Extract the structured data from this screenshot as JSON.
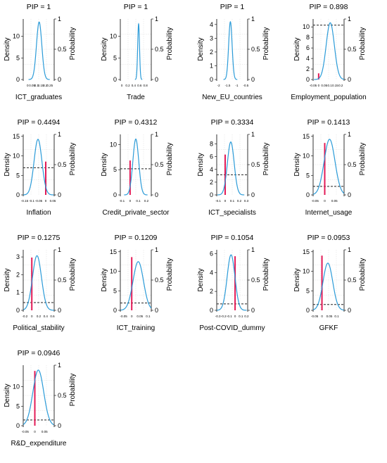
{
  "chart_data": [
    {
      "type": "line",
      "title": "PIP = 1",
      "xlabel": "ICT_graduates",
      "ylabel": "Density",
      "y2label": "Probability",
      "pip": 1,
      "mean": 0.13,
      "sd": 0.03,
      "xlim": [
        -0.05,
        0.3
      ],
      "ylim": [
        0,
        14
      ],
      "xticks": [
        "0",
        "0.05",
        "0.1",
        "0.15",
        "0.2",
        "0.25"
      ],
      "yticks": [
        "0",
        "5",
        "10"
      ],
      "y2ticks": [
        "0",
        "0.5",
        "1"
      ]
    },
    {
      "type": "line",
      "title": "PIP = 1",
      "xlabel": "Trade",
      "ylabel": "Density",
      "y2label": "Probability",
      "pip": 1,
      "mean": 0.57,
      "sd": 0.031,
      "xlim": [
        -0.05,
        1.0
      ],
      "ylim": [
        0,
        14
      ],
      "xticks": [
        "0",
        "0.2",
        "0.4",
        "0.6",
        "0.8"
      ],
      "yticks": [
        "0",
        "5",
        "10"
      ],
      "y2ticks": [
        "0",
        "0.5",
        "1"
      ]
    },
    {
      "type": "line",
      "title": "PIP = 1",
      "xlabel": "New_EU_countries",
      "ylabel": "Density",
      "y2label": "Probability",
      "pip": 1,
      "mean": -1.35,
      "sd": 0.095,
      "xlim": [
        -2.1,
        -0.4
      ],
      "ylim": [
        0,
        4.4
      ],
      "xticks": [
        "-2",
        "-1.5",
        "-1",
        "-0.5"
      ],
      "yticks": [
        "0",
        "1",
        "2",
        "3",
        "4"
      ],
      "y2ticks": [
        "0",
        "0.5",
        "1"
      ]
    },
    {
      "type": "line",
      "title": "PIP = 0.898",
      "xlabel": "Employment_population",
      "ylabel": "Density",
      "y2label": "Probability",
      "pip": 0.898,
      "mean": 0.105,
      "sd": 0.037,
      "xlim": [
        -0.05,
        0.23
      ],
      "ylim": [
        0,
        11.5
      ],
      "xticks": [
        "-0.05",
        "0",
        "0.05",
        "0.1",
        "0.15",
        "0.2"
      ],
      "yticks": [
        "0",
        "2",
        "4",
        "6",
        "8",
        "10"
      ],
      "y2ticks": [
        "0",
        "0.5",
        "1"
      ]
    },
    {
      "type": "line",
      "title": "PIP = 0.4494",
      "xlabel": "Inflation",
      "ylabel": "Density",
      "y2label": "Probability",
      "pip": 0.4494,
      "mean": -0.055,
      "sd": 0.028,
      "xlim": [
        -0.16,
        0.06
      ],
      "ylim": [
        0,
        15.5
      ],
      "xticks": [
        "-0.15",
        "-0.1",
        "-0.05",
        "0",
        "0.05"
      ],
      "yticks": [
        "0",
        "5",
        "10",
        "15"
      ],
      "y2ticks": [
        "0",
        "0.5",
        "1"
      ]
    },
    {
      "type": "line",
      "title": "PIP = 0.4312",
      "xlabel": "Credit_private_sector",
      "ylabel": "Density",
      "y2label": "Probability",
      "pip": 0.4312,
      "mean": 0.07,
      "sd": 0.036,
      "xlim": [
        -0.12,
        0.26
      ],
      "ylim": [
        0,
        12
      ],
      "xticks": [
        "-0.1",
        "0",
        "0.1",
        "0.2"
      ],
      "yticks": [
        "0",
        "5",
        "10"
      ],
      "y2ticks": [
        "0",
        "0.5",
        "1"
      ]
    },
    {
      "type": "line",
      "title": "PIP = 0.3334",
      "xlabel": "ICT_specialists",
      "ylabel": "Density",
      "y2label": "Probability",
      "pip": 0.3334,
      "mean": 0.08,
      "sd": 0.048,
      "xlim": [
        -0.12,
        0.32
      ],
      "ylim": [
        0,
        9.5
      ],
      "xticks": [
        "-0.1",
        "0",
        "0.1",
        "0.2",
        "0.3"
      ],
      "yticks": [
        "0",
        "2",
        "4",
        "6",
        "8"
      ],
      "y2ticks": [
        "0",
        "0.5",
        "1"
      ]
    },
    {
      "type": "line",
      "title": "PIP = 0.1413",
      "xlabel": "Internet_usage",
      "ylabel": "Density",
      "y2label": "Probability",
      "pip": 0.1413,
      "mean": 0.025,
      "sd": 0.028,
      "xlim": [
        -0.06,
        0.1
      ],
      "ylim": [
        0,
        15.5
      ],
      "xticks": [
        "-0.05",
        "0",
        "0.05"
      ],
      "yticks": [
        "0",
        "5",
        "10",
        "15"
      ],
      "y2ticks": [
        "0",
        "0.5",
        "1"
      ]
    },
    {
      "type": "line",
      "title": "PIP = 0.1275",
      "xlabel": "Political_stability",
      "ylabel": "Density",
      "y2label": "Probability",
      "pip": 0.1275,
      "mean": 0.15,
      "sd": 0.13,
      "xlim": [
        -0.25,
        0.65
      ],
      "ylim": [
        0,
        3.4
      ],
      "xticks": [
        "-0.2",
        "0",
        "0.2",
        "0.4",
        "0.6"
      ],
      "yticks": [
        "0",
        "1",
        "2",
        "3"
      ],
      "y2ticks": [
        "0",
        "0.5",
        "1"
      ]
    },
    {
      "type": "line",
      "title": "PIP = 0.1209",
      "xlabel": "ICT_training",
      "ylabel": "Density",
      "y2label": "Probability",
      "pip": 0.1209,
      "mean": 0.04,
      "sd": 0.032,
      "xlim": [
        -0.07,
        0.12
      ],
      "ylim": [
        0,
        15.5
      ],
      "xticks": [
        "-0.05",
        "0",
        "0.05",
        "0.1"
      ],
      "yticks": [
        "0",
        "5",
        "10",
        "15"
      ],
      "y2ticks": [
        "0",
        "0.5",
        "1"
      ]
    },
    {
      "type": "line",
      "title": "PIP = 0.1054",
      "xlabel": "Post-COVID_dummy",
      "ylabel": "Density",
      "y2label": "Probability",
      "pip": 0.1054,
      "mean": -0.07,
      "sd": 0.068,
      "xlim": [
        -0.32,
        0.22
      ],
      "ylim": [
        0,
        6.4
      ],
      "xticks": [
        "-0.3",
        "-0.2",
        "-0.1",
        "0",
        "0.1",
        "0.2"
      ],
      "yticks": [
        "0",
        "2",
        "4",
        "6"
      ],
      "y2ticks": [
        "0",
        "0.5",
        "1"
      ]
    },
    {
      "type": "line",
      "title": "PIP = 0.0953",
      "xlabel": "GFKF",
      "ylabel": "Density",
      "y2label": "Probability",
      "pip": 0.0953,
      "mean": 0.04,
      "sd": 0.033,
      "xlim": [
        -0.06,
        0.15
      ],
      "ylim": [
        0,
        15.5
      ],
      "xticks": [
        "-0.05",
        "0",
        "0.05",
        "0.1"
      ],
      "yticks": [
        "0",
        "5",
        "10",
        "15"
      ],
      "y2ticks": [
        "0",
        "0.5",
        "1"
      ]
    },
    {
      "type": "line",
      "title": "PIP = 0.0946",
      "xlabel": "R&D_expenditure",
      "ylabel": "Density",
      "y2label": "Probability",
      "pip": 0.0946,
      "mean": 0.018,
      "sd": 0.028,
      "xlim": [
        -0.06,
        0.1
      ],
      "ylim": [
        0,
        15.5
      ],
      "xticks": [
        "-0.05",
        "0",
        "0.05"
      ],
      "yticks": [
        "0",
        "5",
        "10"
      ],
      "y2ticks": [
        "0",
        "0.5",
        "1"
      ]
    }
  ],
  "style": {
    "curve": "#2b9bd8",
    "bar": "#e31b57",
    "dash": "#222222",
    "grid": "#dddddd"
  }
}
